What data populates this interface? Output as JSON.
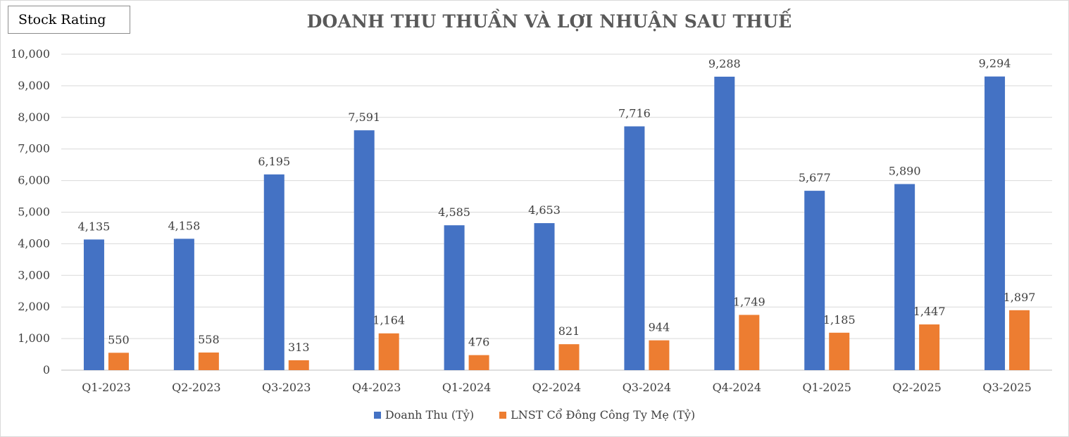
{
  "badge": {
    "label": "Stock Rating"
  },
  "chart_data": {
    "type": "bar",
    "title": "DOANH THU THUẦN VÀ LỢI NHUẬN SAU THUẾ",
    "xlabel": "",
    "ylabel": "",
    "ylim": [
      0,
      10000
    ],
    "yticks": [
      0,
      1000,
      2000,
      3000,
      4000,
      5000,
      6000,
      7000,
      8000,
      9000,
      10000
    ],
    "grid": true,
    "legend_position": "bottom",
    "categories": [
      "Q1-2023",
      "Q2-2023",
      "Q3-2023",
      "Q4-2023",
      "Q1-2024",
      "Q2-2024",
      "Q3-2024",
      "Q4-2024",
      "Q1-2025",
      "Q2-2025",
      "Q3-2025"
    ],
    "series": [
      {
        "name": "Doanh Thu (Tỷ)",
        "color": "#4472c4",
        "values": [
          4135,
          4158,
          6195,
          7591,
          4585,
          4653,
          7716,
          9288,
          5677,
          5890,
          9294
        ]
      },
      {
        "name": "LNST Cổ Đông Công Ty Mẹ (Tỷ)",
        "color": "#ed7d31",
        "values": [
          550,
          558,
          313,
          1164,
          476,
          821,
          944,
          1749,
          1185,
          1447,
          1897
        ]
      }
    ]
  }
}
